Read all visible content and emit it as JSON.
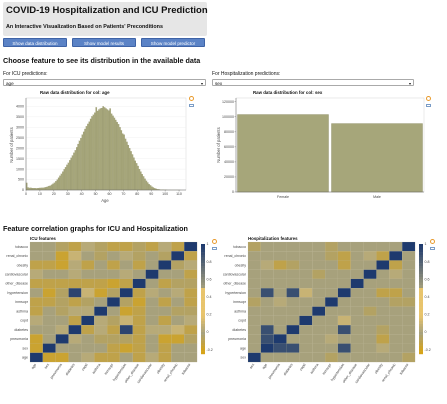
{
  "header": {
    "title": "COVID-19 Hospitalization and ICU Prediction",
    "subtitle": "An Interactive Visualization Based on Patients' Preconditions"
  },
  "buttons": [
    {
      "label": "Show data distribution"
    },
    {
      "label": "Show model results"
    },
    {
      "label": "Show model predictor"
    }
  ],
  "distribution": {
    "heading": "Choose feature to see its distribution in the available data",
    "icu": {
      "select_label": "For ICU predictions:",
      "selected": "age"
    },
    "hosp": {
      "select_label": "For Hospitalization predictions:",
      "selected": "sex"
    }
  },
  "age_chart": {
    "title": "Raw data distribution for col: age",
    "ylabel": "Number of patients",
    "xlabel": "Age"
  },
  "sex_chart": {
    "title": "Raw data distribution for col: sex",
    "ylabel": "Number of patients"
  },
  "correlation": {
    "heading": "Feature correlation graphs for ICU and Hospitalization",
    "icu_title": "ICU features",
    "hosp_title": "Hospitalization features"
  },
  "colors": {
    "bar": "#a6a67a",
    "bar_stroke": "#8a8a62",
    "button": "#5b83c6",
    "corr_pos_strong": "#1e3a6e",
    "corr_neg": "#d6a318",
    "corr_zero": "#a7a17c"
  },
  "chart_data": [
    {
      "type": "bar",
      "title": "Raw data distribution for col: age",
      "xlabel": "Age",
      "ylabel": "Number of patients",
      "x_ticks": [
        "0",
        "10",
        "20",
        "30",
        "40",
        "50",
        "60",
        "70",
        "80",
        "90",
        "100",
        "110"
      ],
      "y_ticks": [
        "0",
        "500",
        "1000",
        "1500",
        "2000",
        "2500",
        "3000",
        "3500",
        "4000"
      ],
      "xlim": [
        0,
        115
      ],
      "ylim": [
        0,
        4400
      ],
      "bins": {
        "x": [
          0,
          1,
          2,
          3,
          4,
          5,
          6,
          7,
          8,
          9,
          10,
          11,
          12,
          13,
          14,
          15,
          16,
          17,
          18,
          19,
          20,
          21,
          22,
          23,
          24,
          25,
          26,
          27,
          28,
          29,
          30,
          31,
          32,
          33,
          34,
          35,
          36,
          37,
          38,
          39,
          40,
          41,
          42,
          43,
          44,
          45,
          46,
          47,
          48,
          49,
          50,
          51,
          52,
          53,
          54,
          55,
          56,
          57,
          58,
          59,
          60,
          61,
          62,
          63,
          64,
          65,
          66,
          67,
          68,
          69,
          70,
          71,
          72,
          73,
          74,
          75,
          76,
          77,
          78,
          79,
          80,
          81,
          82,
          83,
          84,
          85,
          86,
          87,
          88,
          89,
          90,
          91,
          92,
          93,
          94,
          95,
          96,
          97,
          98,
          99,
          100,
          101,
          102,
          103,
          104,
          105,
          106,
          107,
          108,
          109,
          110
        ],
        "values": [
          340,
          120,
          100,
          100,
          90,
          90,
          90,
          80,
          90,
          95,
          100,
          100,
          110,
          120,
          140,
          160,
          190,
          210,
          250,
          300,
          350,
          420,
          500,
          590,
          680,
          770,
          880,
          990,
          1090,
          1200,
          1300,
          1420,
          1540,
          1650,
          1780,
          1900,
          2040,
          2200,
          2350,
          2480,
          2650,
          2780,
          2920,
          3050,
          3160,
          3270,
          3400,
          3520,
          3600,
          3700,
          3950,
          3780,
          3850,
          3900,
          3920,
          4000,
          3950,
          3900,
          3850,
          3800,
          3900,
          3650,
          3550,
          3450,
          3350,
          3250,
          3150,
          3000,
          2850,
          2700,
          2650,
          2450,
          2300,
          2150,
          2000,
          1850,
          1700,
          1550,
          1400,
          1280,
          1150,
          1000,
          880,
          760,
          650,
          540,
          440,
          360,
          280,
          220,
          160,
          120,
          85,
          60,
          40,
          28,
          18,
          12,
          8,
          6,
          4,
          3,
          2,
          2,
          1,
          1,
          1,
          1,
          1,
          1,
          1
        ]
      }
    },
    {
      "type": "bar",
      "title": "Raw data distribution for col: sex",
      "ylabel": "Number of patients",
      "categories": [
        "Female",
        "Male"
      ],
      "values": [
        103000,
        91000
      ],
      "y_ticks": [
        "0",
        "20000",
        "40000",
        "60000",
        "80000",
        "100000",
        "120000"
      ],
      "ylim": [
        0,
        125000
      ]
    },
    {
      "type": "heatmap",
      "title": "ICU features",
      "rows": [
        "tobacco",
        "renal_chronic",
        "obesity",
        "cardiovascular",
        "other_disease",
        "hypertension",
        "inmsupr",
        "asthma",
        "copd",
        "diabetes",
        "pneumonia",
        "sex",
        "age"
      ],
      "cols": [
        "age",
        "sex",
        "pneumonia",
        "diabetes",
        "copd",
        "asthma",
        "inmsupr",
        "hypertension",
        "other_disease",
        "cardiovascular",
        "obesity",
        "renal_chronic",
        "tobacco"
      ],
      "colorbar_ticks": [
        "1",
        "0.8",
        "0.6",
        "0.4",
        "0.2",
        "0",
        "-0.2"
      ],
      "values": [
        [
          0.0,
          0.0,
          -0.05,
          -0.1,
          0.05,
          -0.05,
          -0.1,
          -0.1,
          -0.05,
          -0.1,
          0.05,
          -0.1,
          1.0
        ],
        [
          0.0,
          0.0,
          -0.15,
          0.1,
          0.0,
          -0.05,
          0.0,
          0.05,
          -0.05,
          0.0,
          -0.05,
          1.0,
          -0.1
        ],
        [
          -0.1,
          -0.1,
          -0.15,
          0.05,
          -0.1,
          0.0,
          -0.1,
          0.0,
          -0.1,
          0.0,
          1.0,
          -0.05,
          0.05
        ],
        [
          0.05,
          0.0,
          0.0,
          0.05,
          0.0,
          0.0,
          0.0,
          0.05,
          0.0,
          1.0,
          0.0,
          0.0,
          -0.1
        ],
        [
          -0.1,
          -0.1,
          -0.1,
          -0.1,
          -0.1,
          -0.1,
          -0.15,
          -0.1,
          1.0,
          0.0,
          -0.1,
          -0.05,
          -0.05
        ],
        [
          0.0,
          -0.15,
          -0.05,
          0.95,
          0.1,
          -0.15,
          -0.05,
          1.0,
          -0.1,
          0.05,
          0.0,
          0.05,
          -0.1
        ],
        [
          -0.1,
          -0.1,
          -0.05,
          -0.1,
          -0.05,
          0.0,
          1.0,
          -0.05,
          -0.15,
          0.0,
          -0.1,
          0.0,
          -0.1
        ],
        [
          -0.1,
          0.0,
          -0.05,
          0.05,
          0.05,
          1.0,
          0.0,
          -0.15,
          -0.1,
          0.0,
          0.0,
          -0.05,
          -0.05
        ],
        [
          0.05,
          0.0,
          0.0,
          -0.1,
          1.0,
          0.05,
          -0.05,
          0.1,
          -0.1,
          0.0,
          -0.1,
          0.0,
          0.05
        ],
        [
          0.0,
          0.0,
          0.05,
          1.0,
          -0.1,
          0.05,
          -0.1,
          0.95,
          -0.1,
          0.05,
          0.05,
          0.1,
          -0.1
        ],
        [
          -0.15,
          0.0,
          1.0,
          0.05,
          0.0,
          -0.05,
          -0.05,
          -0.05,
          -0.1,
          0.0,
          -0.15,
          -0.15,
          -0.05
        ],
        [
          -0.15,
          1.0,
          0.0,
          0.0,
          0.0,
          0.0,
          -0.1,
          -0.15,
          -0.1,
          0.0,
          -0.1,
          0.0,
          0.0
        ],
        [
          1.0,
          -0.15,
          -0.15,
          0.0,
          0.05,
          -0.1,
          -0.1,
          0.0,
          -0.1,
          0.05,
          -0.1,
          0.0,
          0.0
        ]
      ]
    },
    {
      "type": "heatmap",
      "title": "Hospitalization features",
      "rows": [
        "tobacco",
        "renal_chronic",
        "obesity",
        "cardiovascular",
        "other_disease",
        "hypertension",
        "inmsupr",
        "asthma",
        "copd",
        "diabetes",
        "pneumonia",
        "age",
        "sex"
      ],
      "cols": [
        "sex",
        "age",
        "pneumonia",
        "diabetes",
        "copd",
        "asthma",
        "inmsupr",
        "hypertension",
        "other_disease",
        "cardiovascular",
        "obesity",
        "renal_chronic",
        "tobacco"
      ],
      "colorbar_ticks": [
        "1",
        "0.8",
        "0.6",
        "0.4",
        "0.2",
        "0",
        "-0.2"
      ],
      "values": [
        [
          -0.05,
          0.0,
          0.0,
          0.0,
          0.0,
          0.0,
          -0.05,
          0.0,
          0.0,
          0.0,
          0.0,
          0.0,
          1.0
        ],
        [
          0.0,
          0.0,
          0.0,
          0.0,
          0.0,
          0.0,
          -0.05,
          -0.1,
          0.0,
          0.05,
          -0.1,
          1.0,
          0.0
        ],
        [
          0.0,
          0.05,
          -0.1,
          -0.05,
          0.0,
          0.0,
          0.0,
          -0.1,
          0.0,
          0.0,
          1.0,
          -0.1,
          0.0
        ],
        [
          0.0,
          0.0,
          0.0,
          0.0,
          0.0,
          -0.05,
          0.0,
          0.0,
          0.0,
          1.0,
          0.0,
          0.05,
          0.0
        ],
        [
          0.0,
          0.0,
          0.0,
          0.0,
          0.0,
          0.0,
          0.0,
          0.0,
          1.0,
          0.0,
          0.0,
          0.0,
          0.0
        ],
        [
          0.0,
          0.9,
          0.0,
          0.9,
          0.1,
          0.0,
          0.0,
          1.0,
          0.0,
          0.0,
          -0.1,
          -0.1,
          0.0
        ],
        [
          -0.05,
          0.0,
          0.05,
          0.0,
          0.0,
          0.0,
          1.0,
          0.0,
          0.0,
          0.0,
          0.0,
          -0.05,
          -0.05
        ],
        [
          0.0,
          0.0,
          0.0,
          0.0,
          0.0,
          1.0,
          0.0,
          0.0,
          0.0,
          -0.05,
          0.0,
          0.0,
          0.0
        ],
        [
          0.0,
          0.0,
          0.0,
          0.0,
          1.0,
          0.0,
          0.0,
          0.1,
          0.0,
          0.0,
          0.0,
          0.0,
          0.0
        ],
        [
          0.0,
          0.9,
          0.0,
          1.0,
          0.0,
          0.0,
          0.0,
          0.9,
          0.0,
          0.0,
          -0.05,
          0.0,
          0.0
        ],
        [
          0.0,
          0.9,
          1.0,
          0.0,
          0.0,
          0.0,
          0.05,
          0.0,
          0.0,
          0.0,
          -0.1,
          0.0,
          0.0
        ],
        [
          0.0,
          1.0,
          0.9,
          0.9,
          0.0,
          0.0,
          0.0,
          0.9,
          0.0,
          0.0,
          0.05,
          0.0,
          0.0
        ],
        [
          1.0,
          0.0,
          0.0,
          0.0,
          0.0,
          0.0,
          -0.05,
          0.0,
          0.0,
          0.0,
          0.0,
          0.0,
          -0.05
        ]
      ]
    }
  ]
}
